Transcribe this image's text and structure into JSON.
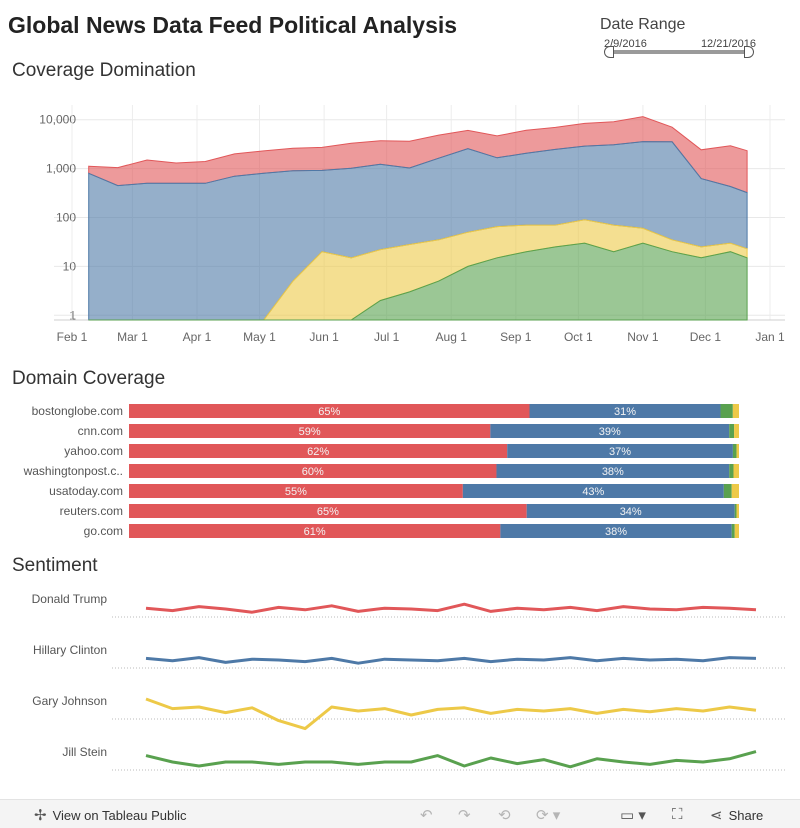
{
  "title": "Global News Data Feed Political Analysis",
  "date_range": {
    "label": "Date Range",
    "start": "2/9/2016",
    "end": "12/21/2016"
  },
  "sections": {
    "coverage": "Coverage Domination",
    "domain": "Domain Coverage",
    "sentiment": "Sentiment"
  },
  "colors": {
    "trump": "#e15759",
    "clinton": "#4e79a7",
    "johnson": "#edc948",
    "stein": "#59a14f"
  },
  "toolbar": {
    "view_label": "View on Tableau Public",
    "share_label": "Share",
    "icons": [
      "tableau-icon",
      "undo-icon",
      "redo-icon",
      "revert-icon",
      "refresh-icon",
      "comment-icon",
      "fullscreen-icon",
      "share-icon"
    ]
  },
  "chart_data": [
    {
      "type": "area",
      "title": "Coverage Domination",
      "y_scale": "log",
      "ylim": [
        0.8,
        20000
      ],
      "y_ticks": [
        "1",
        "10",
        "100",
        "1,000",
        "10,000"
      ],
      "x_ticks": [
        "Feb 1",
        "Mar 1",
        "Apr 1",
        "May 1",
        "Jun 1",
        "Jul 1",
        "Aug 1",
        "Sep 1",
        "Oct 1",
        "Nov 1",
        "Dec 1",
        "Jan 1"
      ],
      "grid": true,
      "stacked": true,
      "x": [
        "2016-02-09",
        "2016-02-23",
        "2016-03-08",
        "2016-03-22",
        "2016-04-05",
        "2016-04-19",
        "2016-05-03",
        "2016-05-17",
        "2016-05-31",
        "2016-06-14",
        "2016-06-28",
        "2016-07-12",
        "2016-07-26",
        "2016-08-09",
        "2016-08-23",
        "2016-09-06",
        "2016-09-20",
        "2016-10-04",
        "2016-10-18",
        "2016-11-01",
        "2016-11-15",
        "2016-11-29",
        "2016-12-13",
        "2016-12-21"
      ],
      "series": [
        {
          "name": "Trump",
          "values": [
            320,
            600,
            1000,
            800,
            900,
            1300,
            1500,
            1700,
            1800,
            2300,
            2500,
            2600,
            3200,
            3500,
            3000,
            4000,
            4500,
            5500,
            6000,
            8000,
            3500,
            1800,
            2500,
            2000
          ]
        },
        {
          "name": "Clinton",
          "values": [
            800,
            450,
            500,
            500,
            500,
            700,
            800,
            900,
            900,
            1000,
            1200,
            1000,
            1600,
            2500,
            1600,
            2000,
            2400,
            2800,
            3000,
            3500,
            3500,
            600,
            400,
            300
          ]
        },
        {
          "name": "Johnson",
          "values": [
            0,
            0,
            0,
            0,
            0,
            0,
            0,
            5,
            20,
            15,
            20,
            25,
            30,
            40,
            50,
            50,
            45,
            60,
            50,
            30,
            15,
            10,
            10,
            8
          ]
        },
        {
          "name": "Stein",
          "values": [
            0,
            0,
            0,
            0,
            0,
            0,
            0,
            0,
            0,
            0,
            2,
            3,
            5,
            10,
            15,
            20,
            25,
            30,
            20,
            30,
            20,
            15,
            20,
            15
          ]
        }
      ]
    },
    {
      "type": "bar",
      "title": "Domain Coverage",
      "stacked": true,
      "categories": [
        "bostonglobe.com",
        "cnn.com",
        "yahoo.com",
        "washingtonpost.c..",
        "usatoday.com",
        "reuters.com",
        "go.com"
      ],
      "series": [
        {
          "name": "Trump",
          "values": [
            65,
            59,
            62,
            60,
            55,
            65,
            61
          ]
        },
        {
          "name": "Clinton",
          "values": [
            31,
            39,
            37,
            38,
            43,
            34,
            38
          ]
        },
        {
          "name": "Stein",
          "values": [
            2,
            0.8,
            0.6,
            0.7,
            1.3,
            0.3,
            0.5
          ]
        },
        {
          "name": "Johnson",
          "values": [
            1,
            0.8,
            0.4,
            0.9,
            1.2,
            0.4,
            0.7
          ]
        }
      ],
      "labels": [
        [
          "65%",
          "31%"
        ],
        [
          "59%",
          "39%"
        ],
        [
          "62%",
          "37%"
        ],
        [
          "60%",
          "38%"
        ],
        [
          "55%",
          "43%"
        ],
        [
          "65%",
          "34%"
        ],
        [
          "61%",
          "38%"
        ]
      ]
    },
    {
      "type": "line",
      "title": "Sentiment",
      "series": [
        {
          "name": "Donald Trump",
          "values": [
            0.1,
            -0.2,
            0.3,
            0.0,
            -0.4,
            0.2,
            -0.1,
            0.4,
            -0.3,
            0.1,
            0.0,
            -0.2,
            0.6,
            -0.3,
            0.1,
            -0.1,
            0.2,
            -0.2,
            0.3,
            0.0,
            -0.1,
            0.2,
            0.1,
            -0.1
          ]
        },
        {
          "name": "Hillary Clinton",
          "values": [
            0.2,
            -0.1,
            0.3,
            -0.3,
            0.1,
            0.0,
            -0.2,
            0.2,
            -0.4,
            0.1,
            0.0,
            -0.1,
            0.2,
            -0.2,
            0.1,
            0.0,
            0.3,
            -0.1,
            0.2,
            0.0,
            0.1,
            -0.1,
            0.3,
            0.2
          ]
        },
        {
          "name": "Gary Johnson",
          "values": [
            1.5,
            0.3,
            0.5,
            -0.2,
            0.4,
            -1.2,
            -2.2,
            0.5,
            0.0,
            0.3,
            -0.5,
            0.2,
            0.4,
            -0.3,
            0.2,
            0.0,
            0.3,
            -0.3,
            0.2,
            -0.1,
            0.3,
            0.0,
            0.5,
            0.1
          ]
        },
        {
          "name": "Jill Stein",
          "values": [
            0.8,
            0.0,
            -0.5,
            0.0,
            0.0,
            -0.3,
            0.0,
            0.0,
            -0.3,
            0.0,
            0.0,
            0.8,
            -0.5,
            0.5,
            -0.2,
            0.3,
            -0.6,
            0.4,
            0.0,
            -0.3,
            0.2,
            0.0,
            0.4,
            1.3
          ]
        }
      ]
    }
  ]
}
